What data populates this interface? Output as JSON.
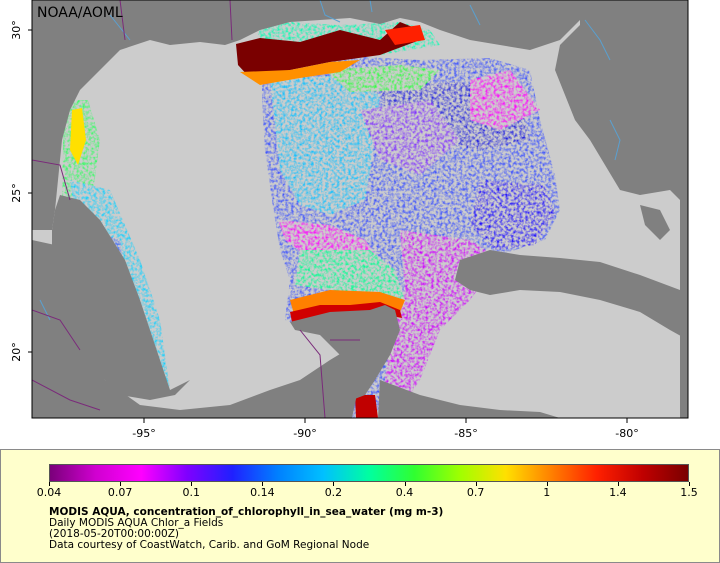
{
  "map": {
    "watermark": "NOAA/AOML",
    "lat_labels": [
      "30°",
      "25°",
      "20°"
    ],
    "lon_labels": [
      "-95°",
      "-90°",
      "-85°",
      "-80°"
    ],
    "colors": {
      "land": "#808080",
      "ocean_nodata": "#cccccc",
      "border": "#7a2a7a",
      "river": "#5aa0d0"
    }
  },
  "legend": {
    "ticks": [
      "0.04",
      "0.07",
      "0.1",
      "0.14",
      "0.2",
      "0.4",
      "0.7",
      "1",
      "1.4",
      "1.5"
    ],
    "colorbar_stops": [
      "#7a007a",
      "#d000d0",
      "#ff00ff",
      "#8000ff",
      "#2020ff",
      "#0080ff",
      "#00c0ff",
      "#00ffa0",
      "#30ff30",
      "#a0ff00",
      "#ffe000",
      "#ff8000",
      "#ff2000",
      "#c00000",
      "#7a0000"
    ],
    "caption": {
      "title": "MODIS AQUA, concentration_of_chlorophyll_in_sea_water (mg m-3)",
      "line2": "Daily MODIS AQUA Chlor_a Fields",
      "line3": "(2018-05-20T00:00:00Z)",
      "line4": "Data courtesy of CoastWatch, Carib. and GoM Regional Node"
    }
  }
}
